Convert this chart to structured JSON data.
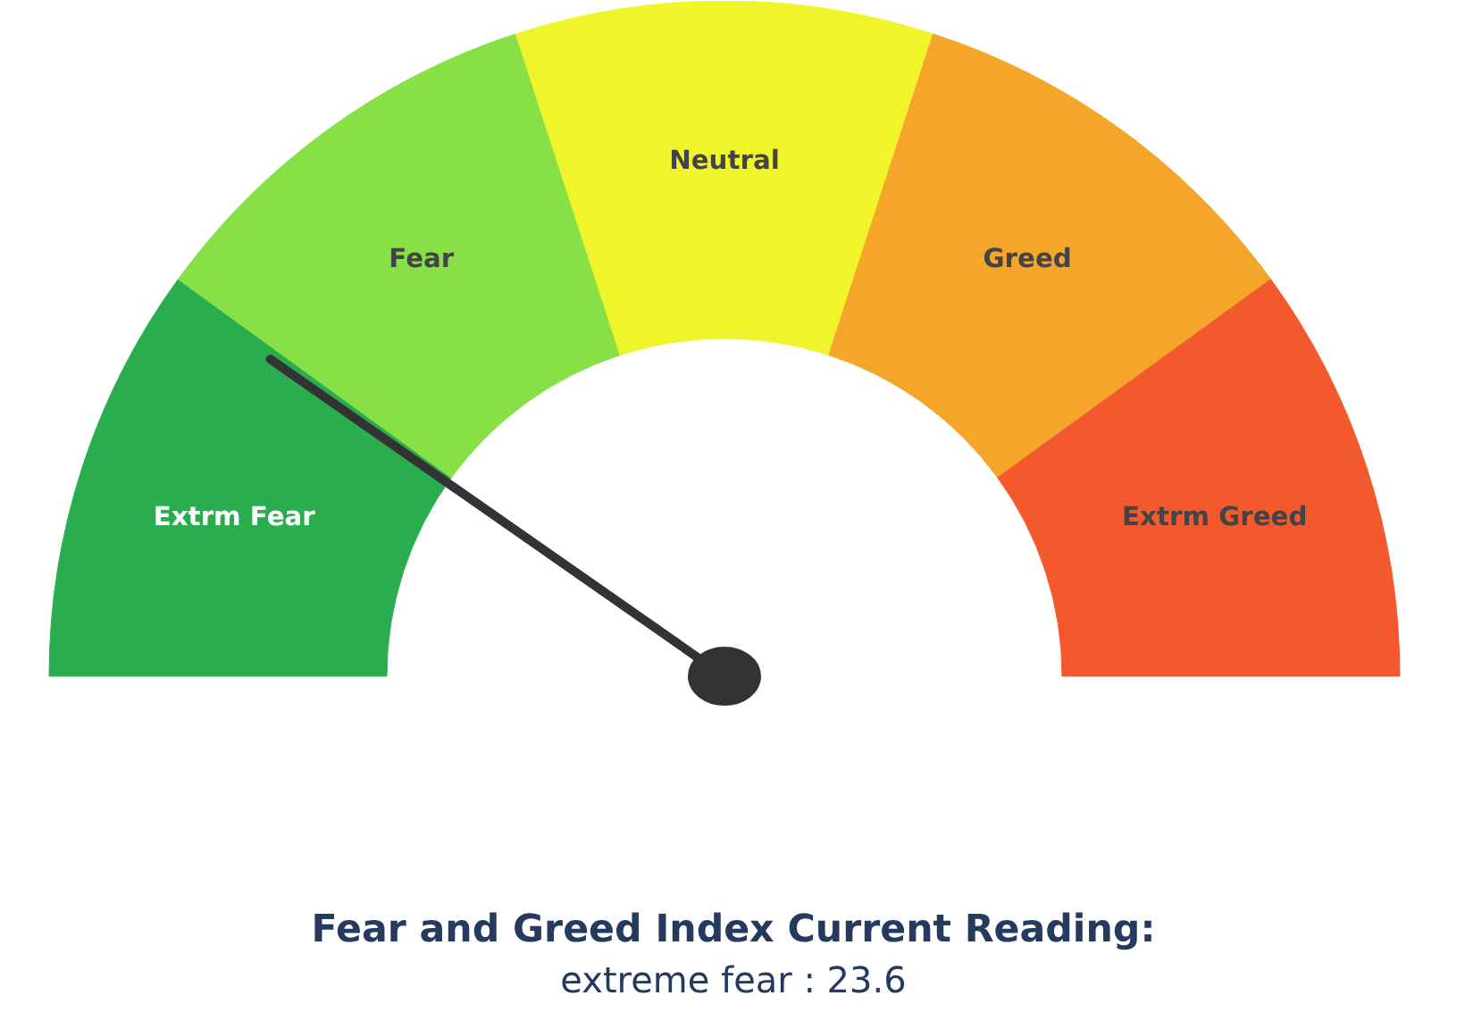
{
  "chart_data": {
    "type": "donut",
    "title": "Fear and Greed Index Current Reading:",
    "subtitle": "extreme fear : 23.6",
    "categories": [
      "Extrm Fear",
      "Fear",
      "Neutral",
      "Greed",
      "Extrm Greed"
    ],
    "values": [
      20,
      20,
      20,
      20,
      20
    ],
    "colors": [
      "#2aad4e",
      "#86e046",
      "#eff52a",
      "#f4a52a",
      "#f3592c"
    ],
    "needle": "Extrm Fear"
  }
}
